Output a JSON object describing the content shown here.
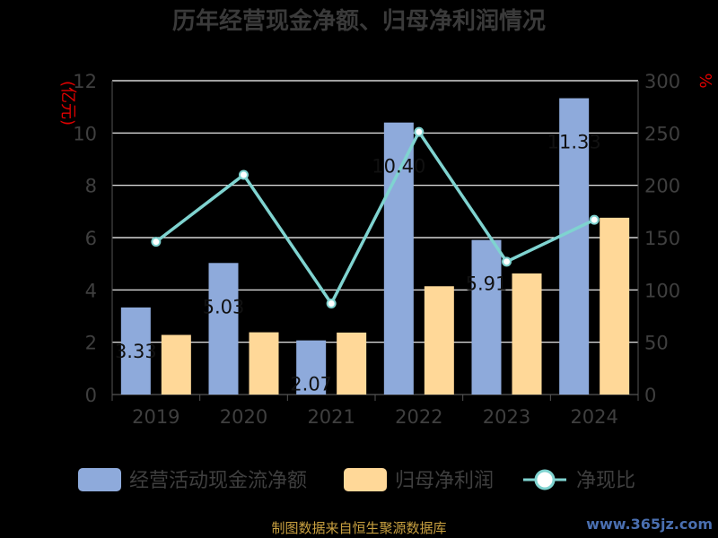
{
  "chart_data": {
    "type": "bar",
    "title": "历年经营现金净额、归母净利润情况",
    "categories": [
      "2019",
      "2020",
      "2021",
      "2022",
      "2023",
      "2024"
    ],
    "series": [
      {
        "name": "经营活动现金流净额",
        "kind": "bar",
        "axis": "left",
        "color": "#8eaadb",
        "values": [
          3.33,
          5.03,
          2.07,
          10.4,
          5.91,
          11.33
        ],
        "labels": [
          "3.33",
          "5.03",
          "2.07",
          "10.40",
          "5.91",
          "11.33"
        ]
      },
      {
        "name": "归母净利润",
        "kind": "bar",
        "axis": "left",
        "color": "#ffd898",
        "values": [
          2.28,
          2.38,
          2.37,
          4.14,
          4.63,
          6.76
        ]
      },
      {
        "name": "净现比",
        "kind": "line",
        "axis": "right",
        "color": "#7fd3d0",
        "values": [
          146,
          210,
          87,
          251,
          127,
          167
        ]
      }
    ],
    "y_left": {
      "label": "亿元",
      "min": 0,
      "max": 12,
      "ticks": [
        "0",
        "2",
        "4",
        "6",
        "8",
        "10",
        "12"
      ]
    },
    "y_right": {
      "label": "%",
      "min": 0,
      "max": 300,
      "ticks": [
        "0",
        "50",
        "100",
        "150",
        "200",
        "250",
        "300"
      ]
    },
    "grid": true,
    "legend": "bottom"
  },
  "footer": {
    "source": "制图数据来自恒生聚源数据库",
    "watermark": "www.365jz.com"
  }
}
